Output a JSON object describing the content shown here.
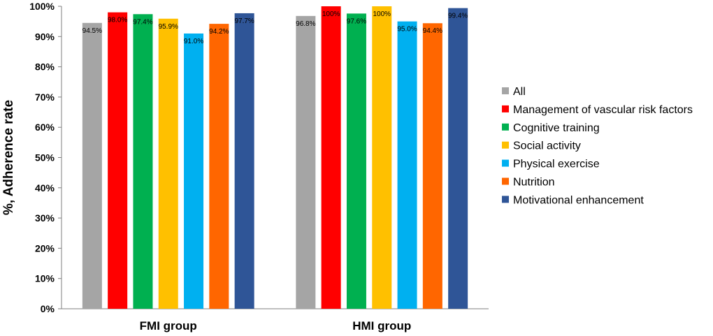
{
  "chart_data": {
    "type": "bar",
    "title": "",
    "xlabel": "",
    "ylabel": "%, Adherence rate",
    "ylim": [
      0,
      100
    ],
    "yticks": [
      "0%",
      "10%",
      "20%",
      "30%",
      "40%",
      "50%",
      "60%",
      "70%",
      "80%",
      "90%",
      "100%"
    ],
    "categories": [
      "FMI group",
      "HMI group"
    ],
    "legend_position": "right",
    "series": [
      {
        "name": "All",
        "color": "#a5a5a5",
        "values": [
          94.5,
          96.8
        ],
        "labels": [
          "94.5%",
          "96.8%"
        ]
      },
      {
        "name": "Management of vascular risk factors",
        "color": "#ff0000",
        "values": [
          98.0,
          100
        ],
        "labels": [
          "98.0%",
          "100%"
        ]
      },
      {
        "name": "Cognitive training",
        "color": "#00b050",
        "values": [
          97.4,
          97.6
        ],
        "labels": [
          "97.4%",
          "97.6%"
        ]
      },
      {
        "name": "Social activity",
        "color": "#ffc000",
        "values": [
          95.9,
          100
        ],
        "labels": [
          "95.9%",
          "100%"
        ]
      },
      {
        "name": "Physical exercise",
        "color": "#00b0f0",
        "values": [
          91.0,
          95.0
        ],
        "labels": [
          "91.0%",
          "95.0%"
        ]
      },
      {
        "name": "Nutrition",
        "color": "#ff6600",
        "values": [
          94.2,
          94.4
        ],
        "labels": [
          "94.2%",
          "94.4%"
        ]
      },
      {
        "name": "Motivational enhancement",
        "color": "#2f5597",
        "values": [
          97.7,
          99.4
        ],
        "labels": [
          "97.7%",
          "99.4%"
        ]
      }
    ]
  }
}
